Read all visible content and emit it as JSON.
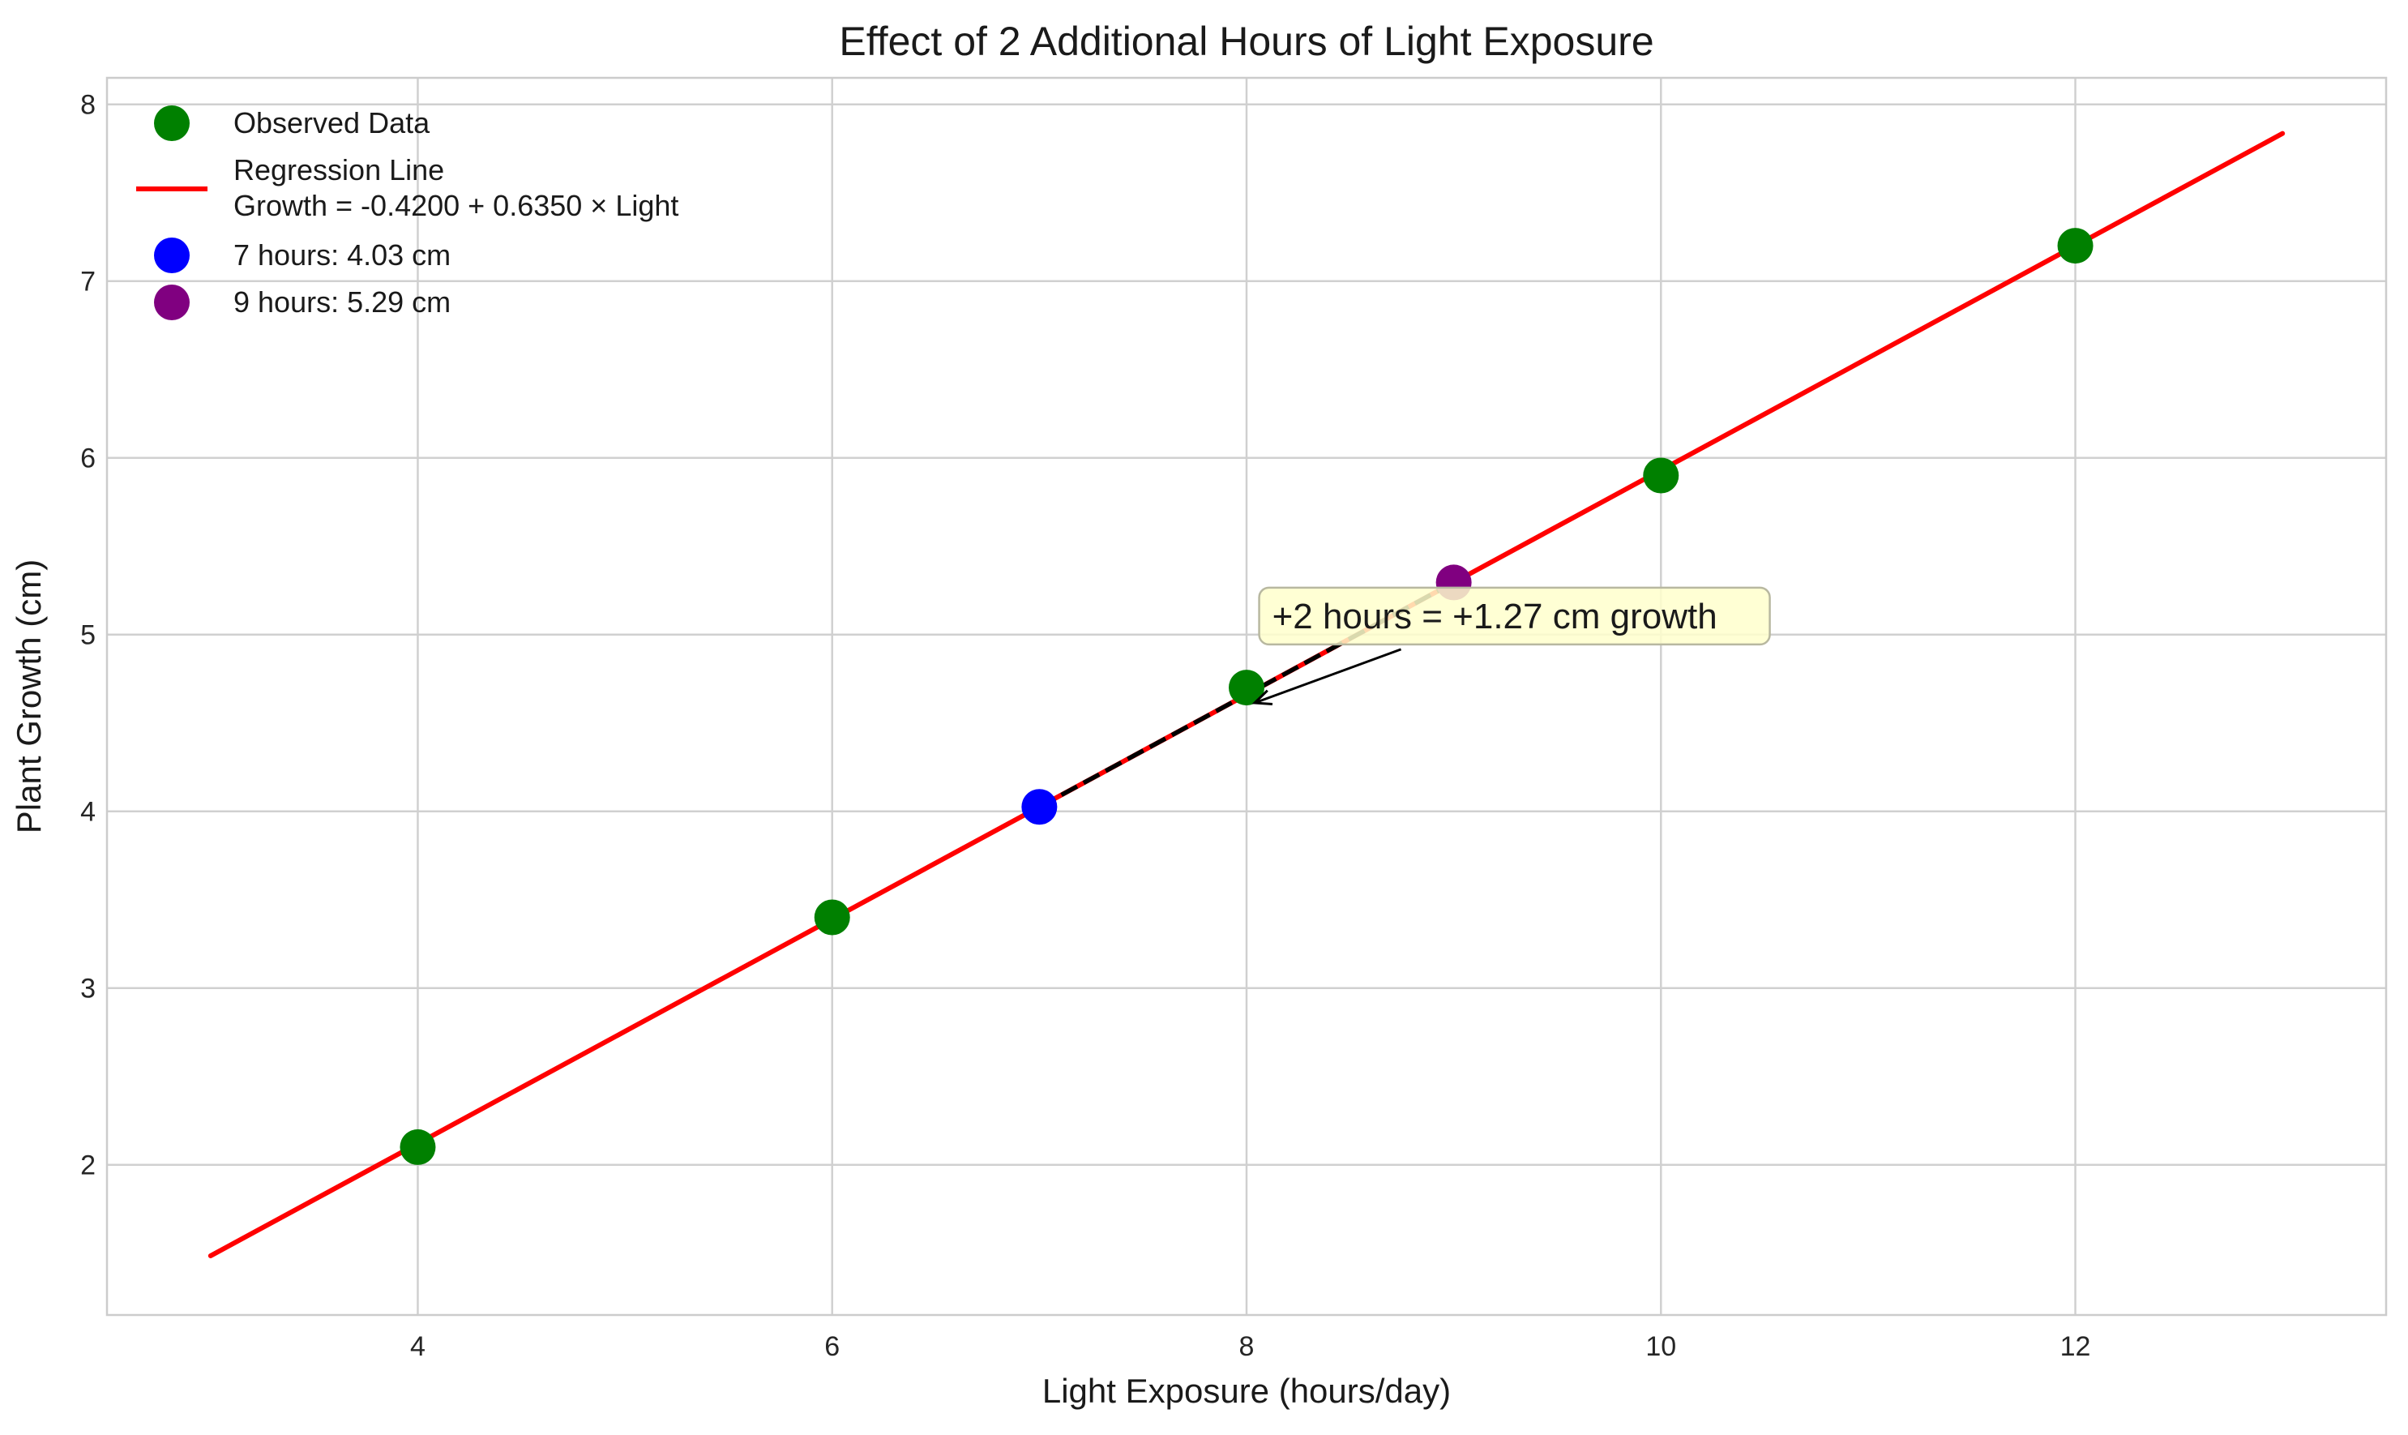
{
  "chart_data": {
    "type": "scatter",
    "title": "Effect of 2 Additional Hours of Light Exposure",
    "xlabel": "Light Exposure (hours/day)",
    "ylabel": "Plant Growth (cm)",
    "xlim": [
      2.5,
      13.5
    ],
    "ylim": [
      1.15,
      8.15
    ],
    "xticks": [
      4,
      6,
      8,
      10,
      12
    ],
    "yticks": [
      2,
      3,
      4,
      5,
      6,
      7,
      8
    ],
    "grid": true,
    "legend_position": "top-left",
    "series": [
      {
        "name": "Observed Data",
        "type": "scatter",
        "color": "#008000",
        "x": [
          4,
          6,
          8,
          10,
          12
        ],
        "y": [
          2.1,
          3.4,
          4.7,
          5.9,
          7.2
        ]
      },
      {
        "name": "7 hours: 4.03 cm",
        "type": "scatter",
        "color": "#0000ff",
        "x": [
          7
        ],
        "y": [
          4.025
        ]
      },
      {
        "name": "9 hours: 5.29 cm",
        "type": "scatter",
        "color": "#800080",
        "x": [
          9
        ],
        "y": [
          5.295
        ]
      }
    ],
    "regression": {
      "legend_line1": "Regression Line",
      "legend_line2": "Growth = -0.4200 + 0.6350 × Light",
      "intercept": -0.42,
      "slope": 0.635,
      "x_range": [
        3,
        13
      ],
      "color": "#ff0000"
    },
    "dashed_segment": {
      "x": [
        7,
        9
      ],
      "color": "#000000"
    },
    "annotation": {
      "text": "+2 hours = +1.27 cm growth",
      "text_x": 8.1,
      "text_y": 5.1,
      "arrow_to_x": 8.0,
      "arrow_to_y": 4.65,
      "box_color": "#ffffcc"
    }
  }
}
